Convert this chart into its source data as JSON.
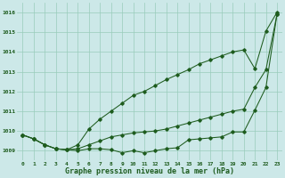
{
  "title": "Graphe pression niveau de la mer (hPa)",
  "background_color": "#cce8e8",
  "grid_color": "#99ccbb",
  "line_color": "#1e5c1e",
  "x_labels": [
    "0",
    "1",
    "2",
    "3",
    "4",
    "5",
    "6",
    "7",
    "8",
    "9",
    "10",
    "11",
    "12",
    "13",
    "14",
    "15",
    "16",
    "17",
    "18",
    "19",
    "20",
    "21",
    "22",
    "23"
  ],
  "ylim": [
    1008.5,
    1016.5
  ],
  "yticks": [
    1009,
    1010,
    1011,
    1012,
    1013,
    1014,
    1015,
    1016
  ],
  "series": {
    "line_top": [
      1009.8,
      1009.6,
      1009.3,
      1009.1,
      1009.05,
      1009.3,
      1010.1,
      1010.6,
      1011.0,
      1011.4,
      1011.8,
      1012.0,
      1012.3,
      1012.6,
      1012.85,
      1013.1,
      1013.4,
      1013.6,
      1013.8,
      1014.0,
      1014.1,
      1013.15,
      1015.05,
      1016.0
    ],
    "line_mid": [
      1009.8,
      1009.6,
      1009.3,
      1009.1,
      1009.05,
      1009.1,
      1009.3,
      1009.5,
      1009.7,
      1009.8,
      1009.9,
      1009.95,
      1010.0,
      1010.1,
      1010.25,
      1010.4,
      1010.55,
      1010.7,
      1010.85,
      1011.0,
      1011.1,
      1012.2,
      1013.1,
      1015.9
    ],
    "line_bot": [
      1009.8,
      1009.6,
      1009.3,
      1009.1,
      1009.05,
      1009.0,
      1009.1,
      1009.1,
      1009.05,
      1008.9,
      1009.0,
      1008.9,
      1009.0,
      1009.1,
      1009.15,
      1009.55,
      1009.6,
      1009.65,
      1009.7,
      1009.95,
      1009.95,
      1011.05,
      1012.2,
      1015.9
    ]
  }
}
